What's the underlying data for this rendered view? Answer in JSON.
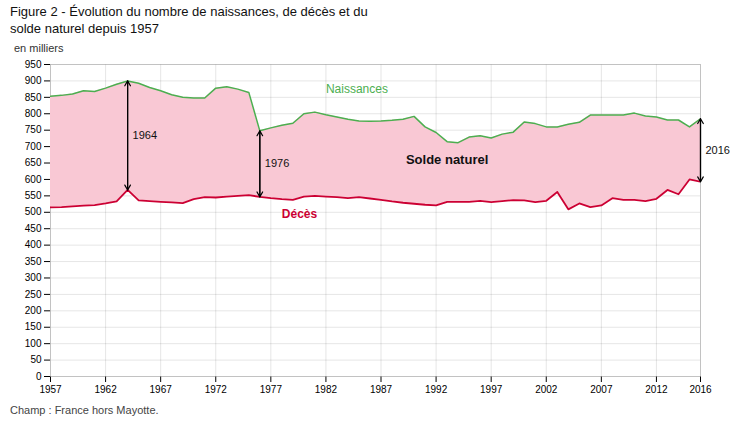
{
  "chart_data": {
    "type": "line",
    "title": "Figure 2 - Évolution du nombre de naissances, de décès et du\nsolde naturel depuis 1957",
    "ylabel": "en milliers",
    "caption": "Champ : France hors Mayotte.",
    "x": [
      1957,
      1958,
      1959,
      1960,
      1961,
      1962,
      1963,
      1964,
      1965,
      1966,
      1967,
      1968,
      1969,
      1970,
      1971,
      1972,
      1973,
      1974,
      1975,
      1976,
      1977,
      1978,
      1979,
      1980,
      1981,
      1982,
      1983,
      1984,
      1985,
      1986,
      1987,
      1988,
      1989,
      1990,
      1991,
      1992,
      1993,
      1994,
      1995,
      1996,
      1997,
      1998,
      1999,
      2000,
      2001,
      2002,
      2003,
      2004,
      2005,
      2006,
      2007,
      2008,
      2009,
      2010,
      2011,
      2012,
      2013,
      2014,
      2015,
      2016
    ],
    "series": [
      {
        "name": "Naissances",
        "color": "#4caf50",
        "values": [
          853,
          856,
          860,
          870,
          868,
          878,
          890,
          900,
          893,
          880,
          870,
          858,
          850,
          848,
          848,
          878,
          882,
          875,
          865,
          748,
          757,
          765,
          771,
          800,
          805,
          797,
          790,
          783,
          778,
          777,
          778,
          780,
          783,
          792,
          760,
          743,
          715,
          712,
          729,
          733,
          726,
          738,
          744,
          775,
          770,
          760,
          760,
          768,
          774,
          796,
          796,
          796,
          796,
          802,
          793,
          790,
          781,
          781,
          760,
          785
        ],
        "label_x": 1982,
        "label_y": 862
      },
      {
        "name": "Décès",
        "color": "#cc0033",
        "values": [
          515,
          516,
          518,
          520,
          522,
          527,
          533,
          568,
          536,
          534,
          532,
          530,
          528,
          540,
          546,
          545,
          548,
          550,
          552,
          547,
          543,
          540,
          538,
          548,
          550,
          548,
          546,
          543,
          546,
          542,
          538,
          533,
          529,
          526,
          523,
          521,
          532,
          532,
          532,
          535,
          531,
          534,
          537,
          536,
          531,
          535,
          562,
          509,
          527,
          516,
          521,
          543,
          538,
          538,
          534,
          541,
          568,
          555,
          600,
          593
        ],
        "label_x": 1978,
        "label_y": 510
      }
    ],
    "fill_between": {
      "lower": "Décès",
      "upper": "Naissances",
      "color": "#f9c8d4"
    },
    "annotations": [
      {
        "text": "Solde naturel",
        "x": 1993,
        "y": 660
      }
    ],
    "arrows": [
      {
        "label": "1964",
        "x": 1964,
        "y_from": 900,
        "y_to": 568
      },
      {
        "label": "1976",
        "x": 1976,
        "y_from": 748,
        "y_to": 547
      },
      {
        "label": "2016",
        "x": 2016,
        "y_from": 785,
        "y_to": 593
      }
    ],
    "xlim": [
      1957,
      2016
    ],
    "xticks": [
      1957,
      1962,
      1967,
      1972,
      1977,
      1982,
      1987,
      1992,
      1997,
      2002,
      2007,
      2012,
      2016
    ],
    "ylim": [
      0,
      950
    ],
    "yticks": [
      0,
      50,
      100,
      150,
      200,
      250,
      300,
      350,
      400,
      450,
      500,
      550,
      600,
      650,
      700,
      750,
      800,
      850,
      900,
      950
    ],
    "grid": true
  }
}
